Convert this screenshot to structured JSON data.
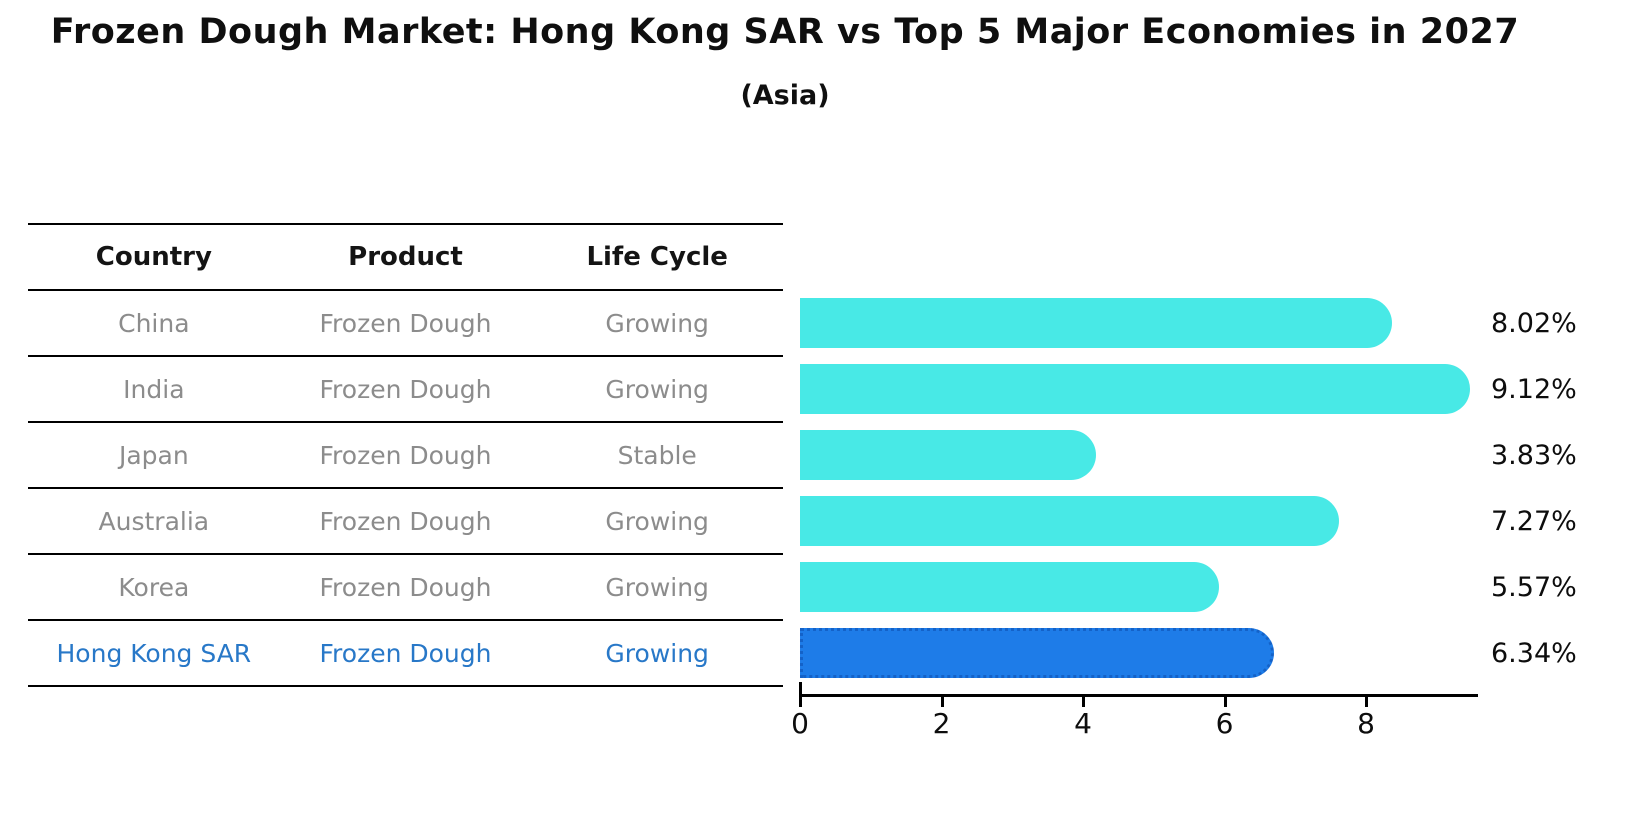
{
  "header": {
    "title": "Frozen Dough Market: Hong Kong SAR vs Top 5 Major Economies in 2027",
    "subtitle": "(Asia)"
  },
  "table": {
    "headers": [
      "Country",
      "Product",
      "Life Cycle"
    ],
    "rows": [
      {
        "country": "China",
        "product": "Frozen Dough",
        "life_cycle": "Growing"
      },
      {
        "country": "India",
        "product": "Frozen Dough",
        "life_cycle": "Growing"
      },
      {
        "country": "Japan",
        "product": "Frozen Dough",
        "life_cycle": "Stable"
      },
      {
        "country": "Australia",
        "product": "Frozen Dough",
        "life_cycle": "Growing"
      },
      {
        "country": "Korea",
        "product": "Frozen Dough",
        "life_cycle": "Growing"
      },
      {
        "country": "Hong Kong SAR",
        "product": "Frozen Dough",
        "life_cycle": "Growing"
      }
    ],
    "highlight_row": 5
  },
  "chart_data": {
    "type": "bar",
    "orientation": "horizontal",
    "title": "Frozen Dough Market: Hong Kong SAR vs Top 5 Major Economies in 2027",
    "subtitle": "(Asia)",
    "categories": [
      "China",
      "India",
      "Japan",
      "Australia",
      "Korea",
      "Hong Kong SAR"
    ],
    "values": [
      8.02,
      9.12,
      3.83,
      7.27,
      5.57,
      6.34
    ],
    "value_labels": [
      "8.02%",
      "9.12%",
      "3.83%",
      "7.27%",
      "5.57%",
      "6.34%"
    ],
    "xlabel": "",
    "ylabel": "",
    "xlim": [
      0,
      9.57
    ],
    "x_ticks": [
      0,
      2,
      4,
      6,
      8
    ],
    "grid": false,
    "legend": false,
    "bar_color": "#48e9e6",
    "highlight_color": "#1e7ce8",
    "highlight_edge_color": "#1462c8",
    "highlight_index": 5,
    "text_color": "#0d0d0d",
    "row_text_color": "#8c8c8c",
    "highlight_text_color": "#2878c8"
  }
}
